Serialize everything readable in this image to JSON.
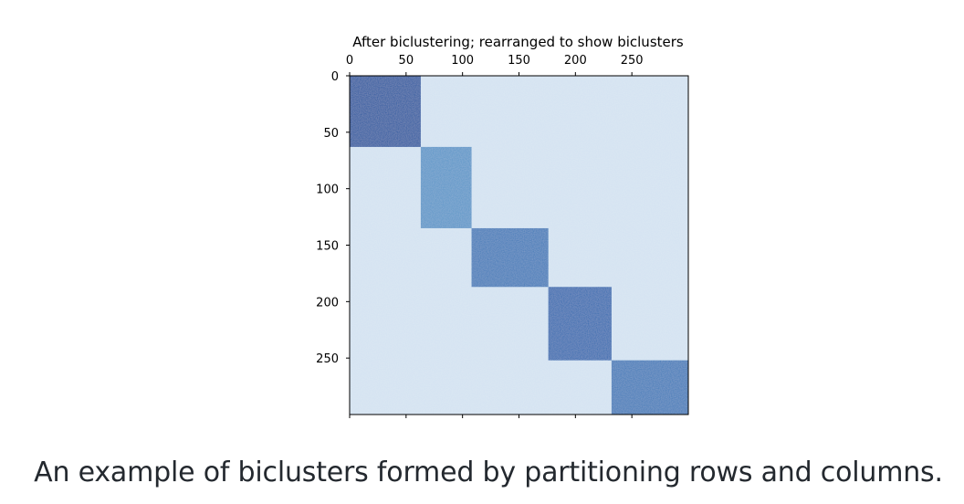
{
  "caption": "An example of biclusters formed by partitioning rows and columns.",
  "chart_data": {
    "type": "heatmap",
    "title": "After biclustering; rearranged to show biclusters",
    "xlabel": "",
    "ylabel": "",
    "n_rows": 300,
    "n_cols": 300,
    "x_ticks": [
      0,
      50,
      100,
      150,
      200,
      250
    ],
    "y_ticks": [
      0,
      50,
      100,
      150,
      200,
      250
    ],
    "x_axis_position": "top",
    "colormap": "Blues",
    "background_level": 0.18,
    "background_color": "#d3e2f1",
    "biclusters": [
      {
        "rows": [
          0,
          63
        ],
        "cols": [
          0,
          63
        ],
        "level": 0.85,
        "color": "#2558a0"
      },
      {
        "rows": [
          63,
          135
        ],
        "cols": [
          63,
          108
        ],
        "level": 0.55,
        "color": "#5a95c8"
      },
      {
        "rows": [
          135,
          187
        ],
        "cols": [
          108,
          176
        ],
        "level": 0.72,
        "color": "#3f7ab9"
      },
      {
        "rows": [
          187,
          252
        ],
        "cols": [
          176,
          232
        ],
        "level": 0.8,
        "color": "#336ab0"
      },
      {
        "rows": [
          252,
          300
        ],
        "cols": [
          232,
          300
        ],
        "level": 0.7,
        "color": "#3f7ab9"
      }
    ]
  }
}
